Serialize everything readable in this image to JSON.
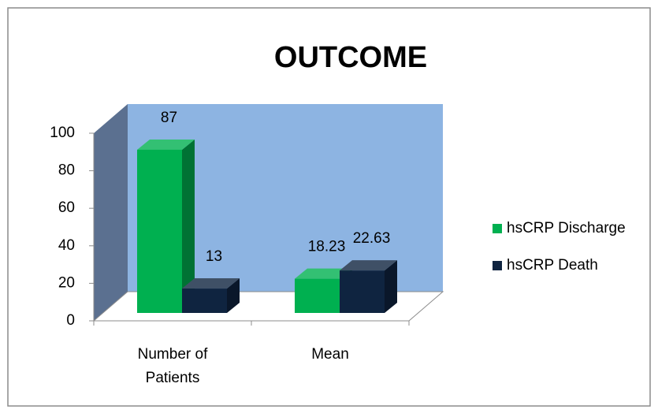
{
  "chart_data": {
    "type": "bar3d",
    "title": "OUTCOME",
    "categories": [
      "Number of Patients",
      "Mean"
    ],
    "series": [
      {
        "name": "hsCRP Discharge",
        "color": "#00b050",
        "values": [
          87,
          18.23
        ]
      },
      {
        "name": "hsCRP Death",
        "color": "#0f2440",
        "values": [
          13,
          22.63
        ]
      }
    ],
    "ylim": [
      0,
      100
    ],
    "yticks": [
      0,
      20,
      40,
      60,
      80,
      100
    ],
    "legend": "right"
  }
}
